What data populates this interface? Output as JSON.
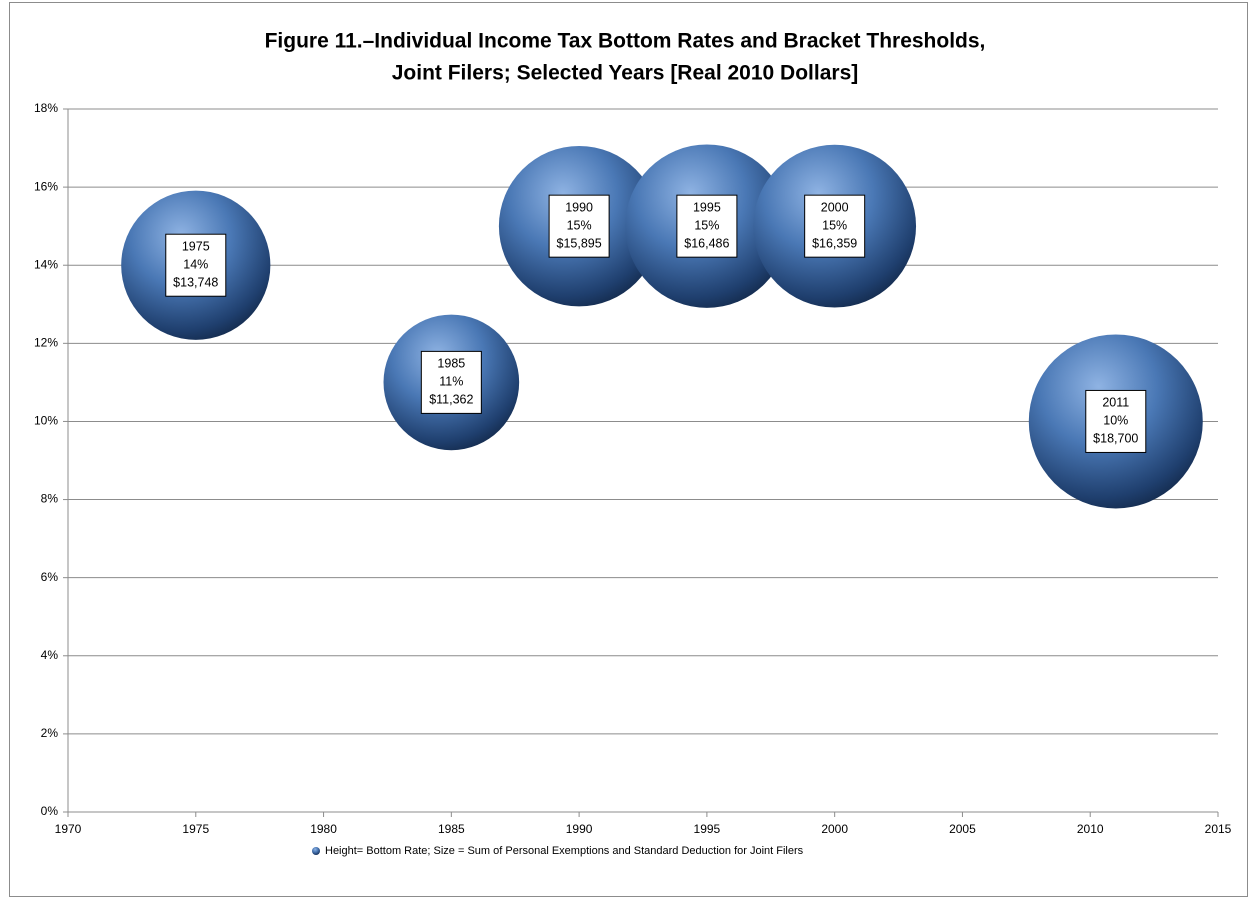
{
  "chart_data": {
    "type": "bubble",
    "title": [
      "Figure 11.–Individual Income Tax Bottom Rates and Bracket Thresholds,",
      "Joint Filers; Selected Years [Real 2010 Dollars]"
    ],
    "series": [
      {
        "name": "Height= Bottom Rate; Size = Sum of Personal Exemptions and Standard Deduction for Joint Filers",
        "color": "#4f81bd",
        "x": [
          1975,
          1985,
          1990,
          1995,
          2000,
          2011
        ],
        "values": [
          14,
          11,
          15,
          15,
          15,
          10
        ],
        "value_labels": [
          "14%",
          "11%",
          "15%",
          "15%",
          "15%",
          "10%"
        ],
        "sizes": [
          13748,
          11362,
          15895,
          16486,
          16359,
          18700
        ],
        "size_labels": [
          "$13,748",
          "$11,362",
          "$15,895",
          "$16,486",
          "$16,359",
          "$18,700"
        ]
      }
    ],
    "xlim": [
      1970,
      2015
    ],
    "xticks": [
      1970,
      1975,
      1980,
      1985,
      1990,
      1995,
      2000,
      2005,
      2010,
      2015
    ],
    "ylim": [
      0,
      18
    ],
    "yticks": [
      {
        "value": 0,
        "label": "0%"
      },
      {
        "value": 2,
        "label": "2%"
      },
      {
        "value": 4,
        "label": "4%"
      },
      {
        "value": 6,
        "label": "6%"
      },
      {
        "value": 8,
        "label": "8%"
      },
      {
        "value": 10,
        "label": "10%"
      },
      {
        "value": 12,
        "label": "12%"
      },
      {
        "value": 14,
        "label": "14%"
      },
      {
        "value": 16,
        "label": "16%"
      },
      {
        "value": 18,
        "label": "18%"
      }
    ],
    "grid": true,
    "legend": "bottom"
  }
}
